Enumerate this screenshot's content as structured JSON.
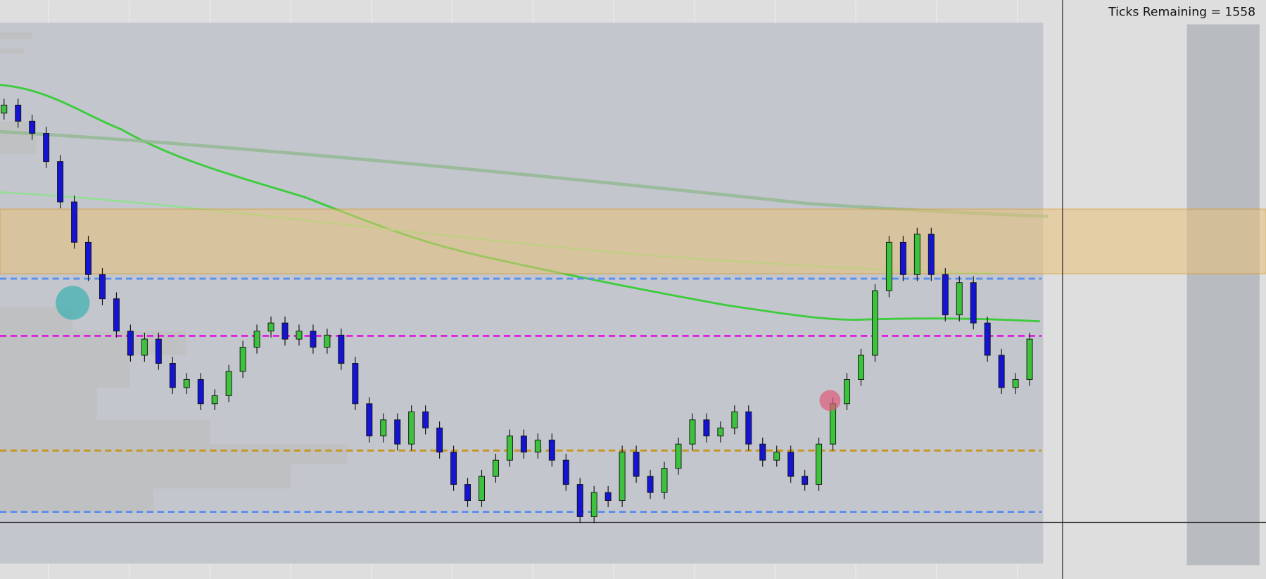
{
  "chart_data": {
    "type": "candlestick",
    "annotation": "Ticks Remaining = 1558",
    "ylim": [
      0,
      717
    ],
    "up_color": "#3cc23c",
    "down_color": "#1414d2",
    "open": [
      577,
      587,
      567,
      552,
      517,
      467,
      417,
      377,
      347,
      307,
      277,
      297,
      267,
      237,
      247,
      217,
      227,
      257,
      287,
      307,
      317,
      297,
      307,
      287,
      302,
      267,
      217,
      177,
      197,
      167,
      207,
      187,
      157,
      117,
      97,
      127,
      147,
      177,
      157,
      172,
      147,
      117,
      77,
      107,
      97,
      157,
      127,
      107,
      137,
      167,
      197,
      177,
      187,
      207,
      167,
      147,
      157,
      127,
      117,
      167,
      217,
      247,
      277,
      357,
      417,
      377,
      427,
      377,
      327,
      367,
      317,
      277,
      237,
      247
    ],
    "high": [
      595,
      595,
      575,
      560,
      525,
      475,
      425,
      385,
      355,
      315,
      305,
      305,
      275,
      255,
      255,
      235,
      265,
      295,
      315,
      325,
      325,
      315,
      315,
      310,
      310,
      275,
      225,
      205,
      205,
      215,
      215,
      195,
      165,
      125,
      135,
      155,
      185,
      185,
      180,
      180,
      155,
      125,
      115,
      115,
      165,
      165,
      135,
      145,
      175,
      205,
      205,
      195,
      215,
      215,
      175,
      165,
      165,
      135,
      175,
      225,
      255,
      285,
      365,
      425,
      425,
      435,
      435,
      385,
      375,
      375,
      325,
      285,
      255,
      305
    ],
    "low": [
      569,
      559,
      544,
      509,
      459,
      409,
      369,
      339,
      299,
      269,
      269,
      259,
      229,
      229,
      209,
      209,
      219,
      249,
      279,
      299,
      289,
      289,
      279,
      279,
      259,
      209,
      169,
      169,
      159,
      159,
      179,
      149,
      109,
      89,
      89,
      119,
      139,
      149,
      149,
      139,
      109,
      69,
      69,
      89,
      89,
      119,
      99,
      99,
      129,
      159,
      169,
      169,
      179,
      159,
      139,
      139,
      119,
      109,
      109,
      159,
      209,
      239,
      269,
      349,
      369,
      369,
      369,
      319,
      319,
      309,
      269,
      229,
      229,
      239
    ],
    "close": [
      587,
      567,
      552,
      517,
      467,
      417,
      377,
      347,
      307,
      277,
      297,
      267,
      237,
      247,
      217,
      227,
      257,
      287,
      307,
      317,
      297,
      307,
      287,
      302,
      267,
      217,
      177,
      197,
      167,
      207,
      187,
      157,
      117,
      97,
      127,
      147,
      177,
      157,
      172,
      147,
      117,
      77,
      107,
      97,
      157,
      127,
      107,
      137,
      167,
      197,
      177,
      187,
      207,
      167,
      147,
      157,
      127,
      117,
      167,
      217,
      247,
      277,
      357,
      417,
      377,
      427,
      377,
      327,
      367,
      317,
      277,
      237,
      247,
      297
    ],
    "levels": [
      {
        "value": 372,
        "color": "#5a8ff0",
        "dash": true
      },
      {
        "value": 83,
        "color": "#5a8ff0",
        "dash": true
      },
      {
        "value": 301,
        "color": "#e020e0",
        "dash": true
      },
      {
        "value": 159,
        "color": "#c8961e",
        "dash": true
      }
    ],
    "band": {
      "ylim": [
        378,
        458
      ],
      "color": "#e8c27a"
    }
  }
}
